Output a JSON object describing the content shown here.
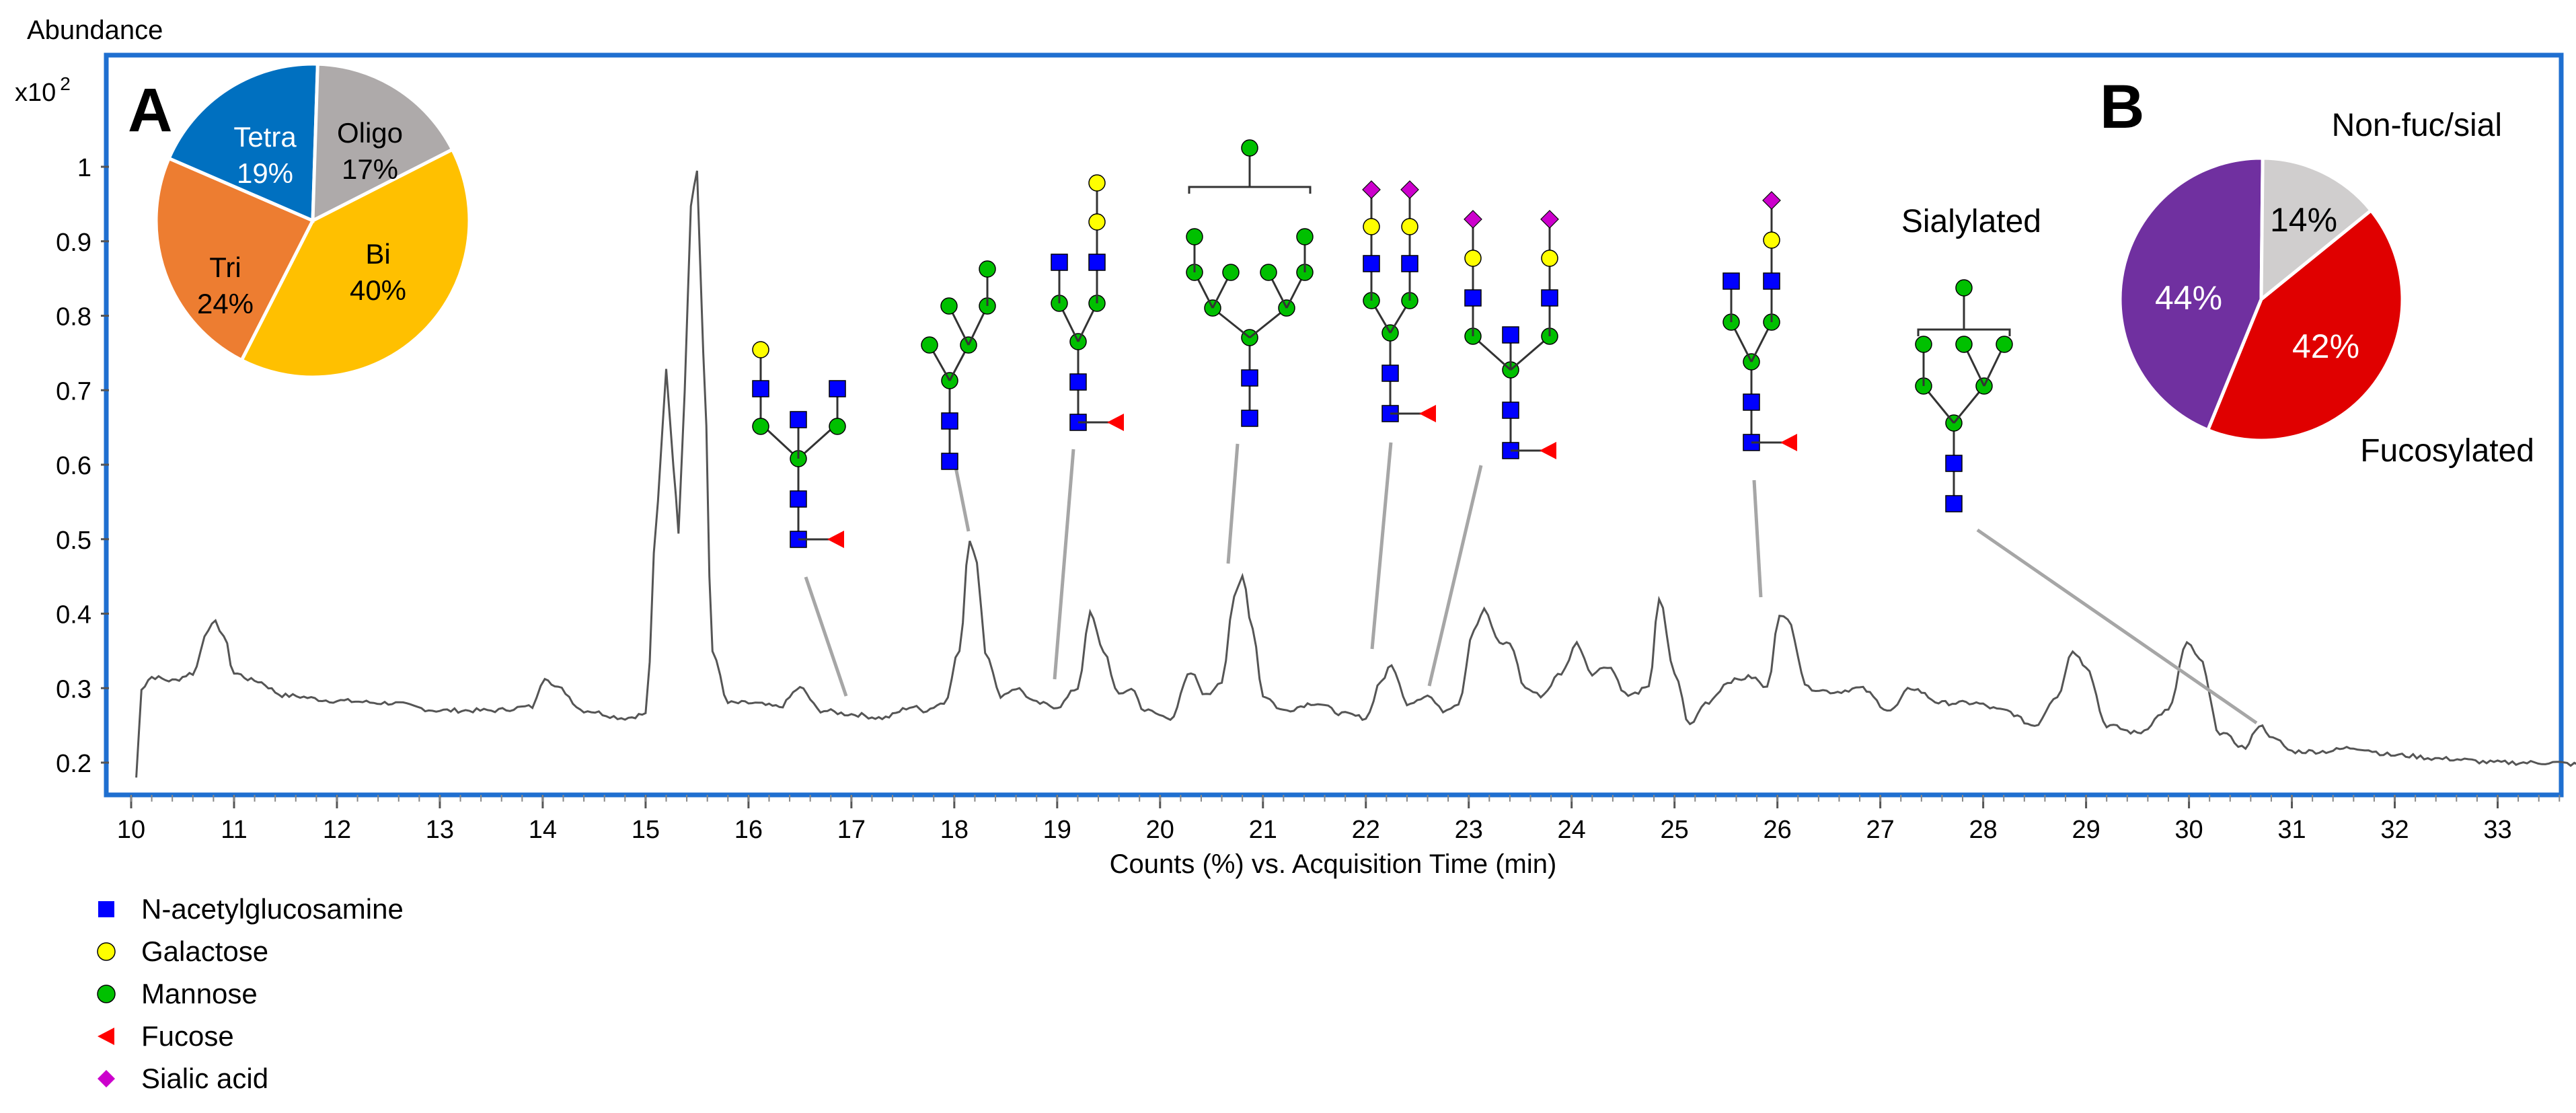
{
  "chart_data": [
    {
      "type": "line",
      "title": "",
      "xlabel": "Counts (%) vs. Acquisition Time (min)",
      "ylabel": "Abundance",
      "y_multiplier": "x10",
      "y_multiplier_exp": "2",
      "xlim": [
        9.85,
        33.9
      ],
      "ylim": [
        0.155,
        1.08
      ],
      "x_ticks": [
        10,
        11,
        12,
        13,
        14,
        15,
        16,
        17,
        18,
        19,
        20,
        21,
        22,
        23,
        24,
        25,
        26,
        27,
        28,
        29,
        30,
        31,
        32,
        33
      ],
      "y_ticks": [
        0.2,
        0.3,
        0.4,
        0.5,
        0.6,
        0.7,
        0.8,
        0.9,
        1
      ],
      "grid": false,
      "series": [
        {
          "name": "",
          "x": [
            10.05,
            10.1,
            10.2,
            10.4,
            10.6,
            10.75,
            10.82,
            10.9,
            11.0,
            11.2,
            11.5,
            12.0,
            12.5,
            13.0,
            13.5,
            13.9,
            14.02,
            14.15,
            14.4,
            14.8,
            15.0,
            15.12,
            15.2,
            15.27,
            15.32,
            15.38,
            15.44,
            15.5,
            15.56,
            15.65,
            15.8,
            16.0,
            16.3,
            16.5,
            16.7,
            17.0,
            17.3,
            17.6,
            17.7,
            17.9,
            18.05,
            18.15,
            18.22,
            18.3,
            18.45,
            18.6,
            18.8,
            19.0,
            19.2,
            19.32,
            19.45,
            19.6,
            19.72,
            19.85,
            20.1,
            20.3,
            20.45,
            20.6,
            20.72,
            20.8,
            20.9,
            21.0,
            21.2,
            21.5,
            21.8,
            22.0,
            22.15,
            22.25,
            22.4,
            22.6,
            22.75,
            22.9,
            23.05,
            23.15,
            23.3,
            23.4,
            23.55,
            23.7,
            23.9,
            24.05,
            24.2,
            24.35,
            24.55,
            24.75,
            24.85,
            25.0,
            25.15,
            25.3,
            25.55,
            25.75,
            25.9,
            26.02,
            26.1,
            26.3,
            26.55,
            26.8,
            27.1,
            27.3,
            27.6,
            27.9,
            28.2,
            28.5,
            28.72,
            28.87,
            29.0,
            29.2,
            29.5,
            29.8,
            29.98,
            30.1,
            30.3,
            30.55,
            30.68,
            30.85,
            31.0,
            31.3,
            31.6,
            32.0,
            32.5,
            33.0,
            33.5,
            33.85
          ],
          "y": [
            0.18,
            0.3,
            0.315,
            0.31,
            0.32,
            0.38,
            0.388,
            0.37,
            0.32,
            0.31,
            0.29,
            0.283,
            0.28,
            0.27,
            0.27,
            0.275,
            0.315,
            0.3,
            0.27,
            0.26,
            0.265,
            0.55,
            0.73,
            0.6,
            0.51,
            0.7,
            0.95,
            0.995,
            0.75,
            0.35,
            0.28,
            0.28,
            0.275,
            0.3,
            0.27,
            0.265,
            0.26,
            0.275,
            0.27,
            0.28,
            0.35,
            0.5,
            0.47,
            0.35,
            0.29,
            0.3,
            0.28,
            0.275,
            0.3,
            0.4,
            0.35,
            0.29,
            0.3,
            0.27,
            0.26,
            0.32,
            0.29,
            0.31,
            0.42,
            0.45,
            0.38,
            0.29,
            0.27,
            0.28,
            0.265,
            0.26,
            0.31,
            0.33,
            0.28,
            0.29,
            0.27,
            0.28,
            0.38,
            0.405,
            0.36,
            0.36,
            0.3,
            0.29,
            0.32,
            0.36,
            0.32,
            0.33,
            0.29,
            0.3,
            0.42,
            0.32,
            0.25,
            0.28,
            0.31,
            0.315,
            0.3,
            0.4,
            0.39,
            0.3,
            0.295,
            0.3,
            0.27,
            0.3,
            0.28,
            0.28,
            0.27,
            0.25,
            0.29,
            0.35,
            0.33,
            0.25,
            0.24,
            0.27,
            0.36,
            0.34,
            0.24,
            0.22,
            0.25,
            0.23,
            0.215,
            0.215,
            0.22,
            0.21,
            0.205,
            0.2,
            0.2,
            0.197
          ]
        }
      ],
      "legend_position": "bottom-left"
    },
    {
      "type": "pie",
      "panel_label": "A",
      "slices": [
        {
          "label": "Bi",
          "value": 40,
          "value_label": "40%",
          "color": "#ffc000"
        },
        {
          "label": "Tri",
          "value": 24,
          "value_label": "24%",
          "color": "#ed7d31"
        },
        {
          "label": "Tetra",
          "value": 19,
          "value_label": "19%",
          "color": "#0070c0"
        },
        {
          "label": "Oligo",
          "value": 17,
          "value_label": "17%",
          "color": "#aeaaaa"
        }
      ]
    },
    {
      "type": "pie",
      "panel_label": "B",
      "slices": [
        {
          "label": "Fucosylated",
          "value": 42,
          "value_label": "42%",
          "color": "#e00000"
        },
        {
          "label": "Sialylated",
          "value": 44,
          "value_label": "44%",
          "color": "#7030a0"
        },
        {
          "label": "Non-fuc/sial",
          "value": 14,
          "value_label": "14%",
          "color": "#d0cece"
        }
      ]
    }
  ],
  "legend": [
    {
      "name": "N-acetylglucosamine",
      "symbol": "square",
      "color": "#0000ff"
    },
    {
      "name": "Galactose",
      "symbol": "circle",
      "color": "#ffff00"
    },
    {
      "name": "Mannose",
      "symbol": "circle",
      "color": "#00c000"
    },
    {
      "name": "Fucose",
      "symbol": "triangle",
      "color": "#ff0000"
    },
    {
      "name": "Sialic acid",
      "symbol": "diamond",
      "color": "#cc00cc"
    }
  ],
  "colors": {
    "frame": "#1f6fd0",
    "trace": "#555555",
    "glcnac": "#0000ff",
    "galactose": "#ffff00",
    "mannose": "#00c000",
    "fucose": "#ff0000",
    "sialic": "#cc00cc"
  }
}
